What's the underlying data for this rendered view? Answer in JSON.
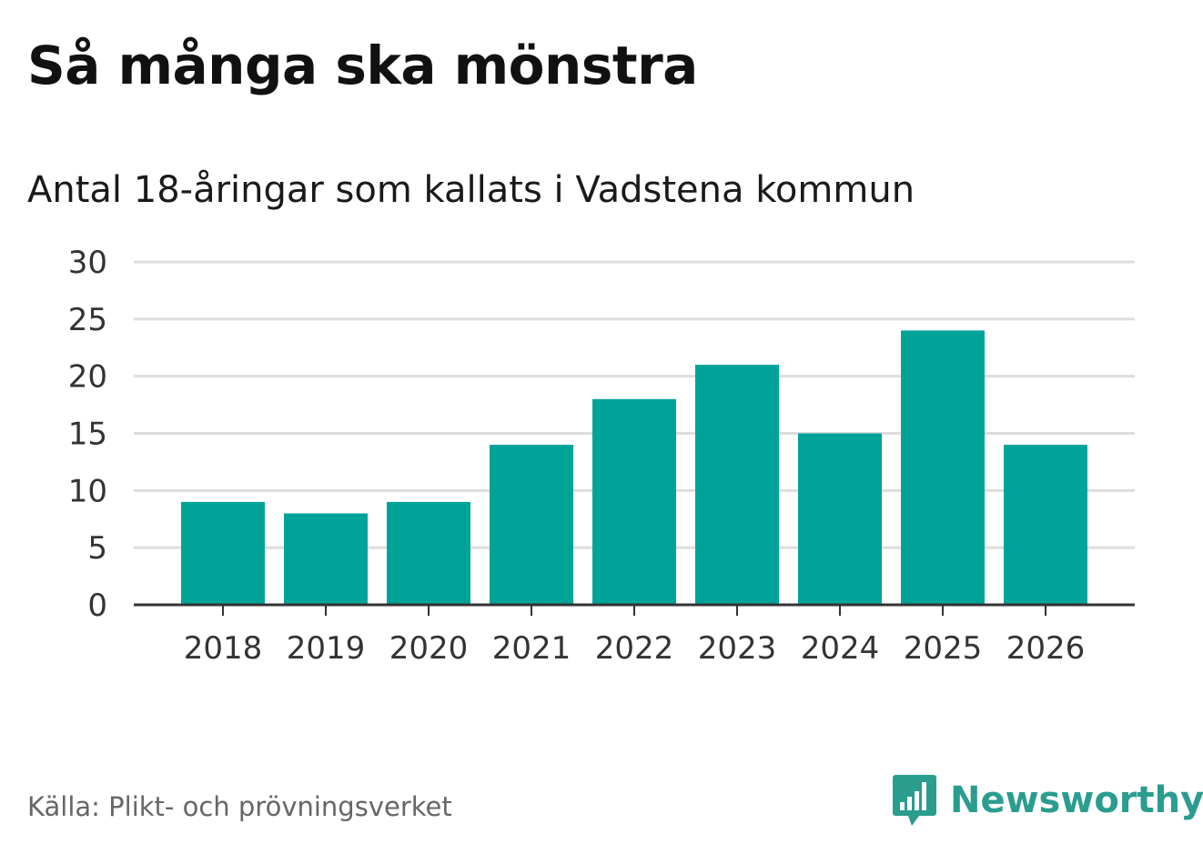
{
  "header": {
    "title": "Så många ska mönstra",
    "subtitle": "Antal 18-åringar som kallats i Vadstena kommun"
  },
  "footer": {
    "source": "Källa: Plikt- och prövningsverket",
    "brand": "Newsworthy",
    "brand_icon": "bar-chart-bubble-icon"
  },
  "colors": {
    "bar": "#00a398",
    "grid": "#dddddd",
    "axis": "#333333",
    "brand": "#2a9d8f"
  },
  "chart_data": {
    "type": "bar",
    "title": "Så många ska mönstra",
    "subtitle": "Antal 18-åringar som kallats i Vadstena kommun",
    "categories": [
      "2018",
      "2019",
      "2020",
      "2021",
      "2022",
      "2023",
      "2024",
      "2025",
      "2026"
    ],
    "values": [
      9,
      8,
      9,
      14,
      18,
      21,
      15,
      24,
      14
    ],
    "xlabel": "",
    "ylabel": "",
    "ylim": [
      0,
      30
    ],
    "yticks": [
      "0",
      "5",
      "10",
      "15",
      "20",
      "25",
      "30"
    ],
    "grid": true,
    "legend": "none"
  }
}
